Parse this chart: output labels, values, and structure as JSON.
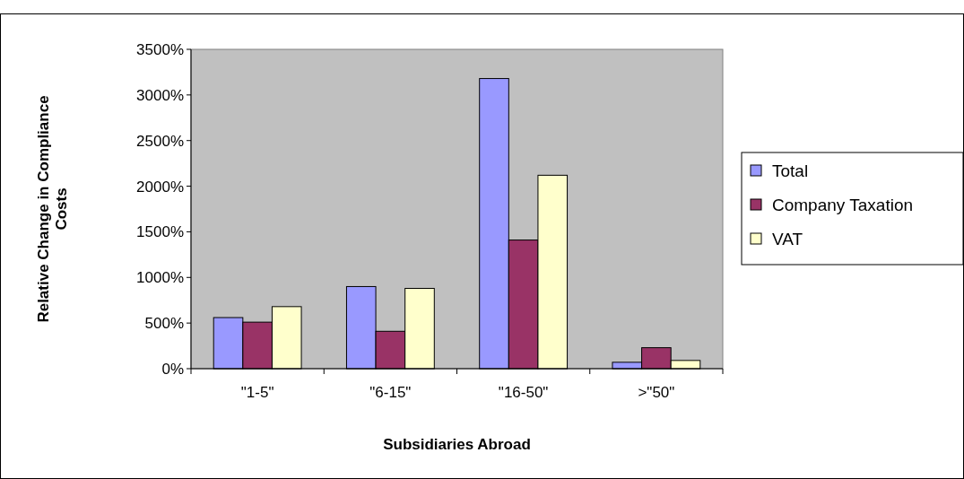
{
  "chart_data": {
    "type": "bar",
    "xlabel": "Subsidiaries Abroad",
    "ylabel": "Relative Change in Compliance Costs",
    "categories": [
      "\"1-5\"",
      "\"6-15\"",
      "\"16-50\"",
      ">\"50\""
    ],
    "series": [
      {
        "name": "Total",
        "color": "#9999ff",
        "values": [
          560,
          900,
          3180,
          70
        ]
      },
      {
        "name": "Company Taxation",
        "color": "#993366",
        "values": [
          510,
          410,
          1410,
          230
        ]
      },
      {
        "name": "VAT",
        "color": "#ffffcc",
        "values": [
          680,
          880,
          2120,
          90
        ]
      }
    ],
    "ylim": [
      0,
      3500
    ],
    "yticks": [
      {
        "value": 0,
        "label": "0%"
      },
      {
        "value": 500,
        "label": "500%"
      },
      {
        "value": 1000,
        "label": "1000%"
      },
      {
        "value": 1500,
        "label": "1500%"
      },
      {
        "value": 2000,
        "label": "2000%"
      },
      {
        "value": 2500,
        "label": "2500%"
      },
      {
        "value": 3000,
        "label": "3000%"
      },
      {
        "value": 3500,
        "label": "3500%"
      }
    ],
    "grid": false,
    "legend": "right"
  }
}
